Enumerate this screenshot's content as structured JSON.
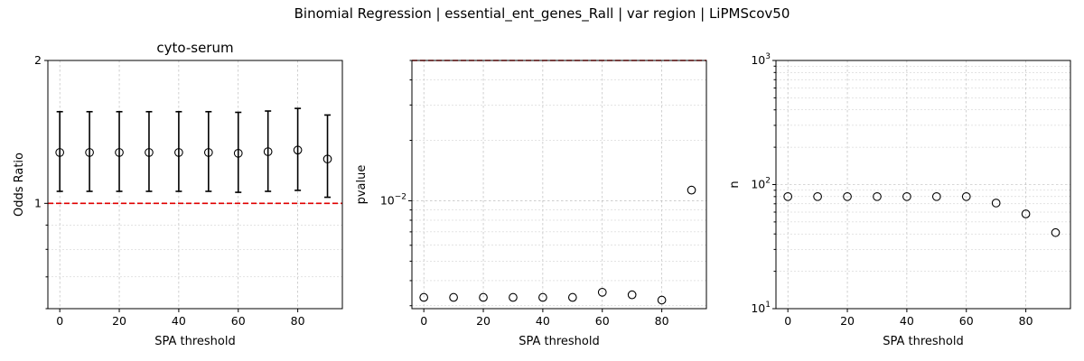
{
  "figure": {
    "suptitle": "Binomial Regression | essential_ent_genes_Rall | var region | LiPMScov50"
  },
  "chart_data": [
    {
      "type": "scatter",
      "title": "cyto-serum",
      "xlabel": "SPA threshold",
      "ylabel": "Odds Ratio",
      "yscale": "log",
      "xlim": [
        -4,
        95
      ],
      "ylim": [
        0.6,
        2
      ],
      "xticks": [
        0,
        20,
        40,
        60,
        80
      ],
      "xtick_labels": [
        "0",
        "20",
        "40",
        "60",
        "80"
      ],
      "yticks": [
        1,
        2
      ],
      "ytick_labels": [
        "1",
        "2"
      ],
      "grid": true,
      "reference_line": 1,
      "error_bars": true,
      "x": [
        0,
        10,
        20,
        30,
        40,
        50,
        60,
        70,
        80,
        90
      ],
      "y": [
        1.28,
        1.28,
        1.28,
        1.28,
        1.28,
        1.28,
        1.275,
        1.285,
        1.295,
        1.24
      ],
      "y_lower": [
        1.06,
        1.06,
        1.06,
        1.06,
        1.06,
        1.06,
        1.055,
        1.06,
        1.065,
        1.03
      ],
      "y_upper": [
        1.56,
        1.56,
        1.56,
        1.56,
        1.56,
        1.56,
        1.555,
        1.565,
        1.585,
        1.535
      ],
      "colors": {
        "marker": "#000000",
        "reference": "#e00000"
      }
    },
    {
      "type": "scatter",
      "title": "",
      "xlabel": "SPA threshold",
      "ylabel": "pvalue",
      "yscale": "log",
      "xlim": [
        -4,
        95
      ],
      "ylim": [
        0.0029,
        0.05
      ],
      "xticks": [
        0,
        20,
        40,
        60,
        80
      ],
      "xtick_labels": [
        "0",
        "20",
        "40",
        "60",
        "80"
      ],
      "yticks": [
        0.01
      ],
      "ytick_labels": [
        "10^-2"
      ],
      "grid": true,
      "reference_line": 0.05,
      "x": [
        0,
        10,
        20,
        30,
        40,
        50,
        60,
        70,
        80,
        90
      ],
      "y": [
        0.0033,
        0.0033,
        0.0033,
        0.0033,
        0.0033,
        0.0033,
        0.0035,
        0.0034,
        0.0032,
        0.0113
      ],
      "colors": {
        "marker": "#000000",
        "reference": "#e00000"
      }
    },
    {
      "type": "scatter",
      "title": "",
      "xlabel": "SPA threshold",
      "ylabel": "n",
      "yscale": "log",
      "xlim": [
        -4,
        95
      ],
      "ylim": [
        10,
        1000
      ],
      "xticks": [
        0,
        20,
        40,
        60,
        80
      ],
      "xtick_labels": [
        "0",
        "20",
        "40",
        "60",
        "80"
      ],
      "yticks": [
        10,
        100,
        1000
      ],
      "ytick_labels": [
        "10^1",
        "10^2",
        "10^3"
      ],
      "grid": true,
      "x": [
        0,
        10,
        20,
        30,
        40,
        50,
        60,
        70,
        80,
        90
      ],
      "y": [
        80,
        80,
        80,
        80,
        80,
        80,
        80,
        71,
        58,
        41
      ],
      "colors": {
        "marker": "#000000"
      }
    }
  ]
}
